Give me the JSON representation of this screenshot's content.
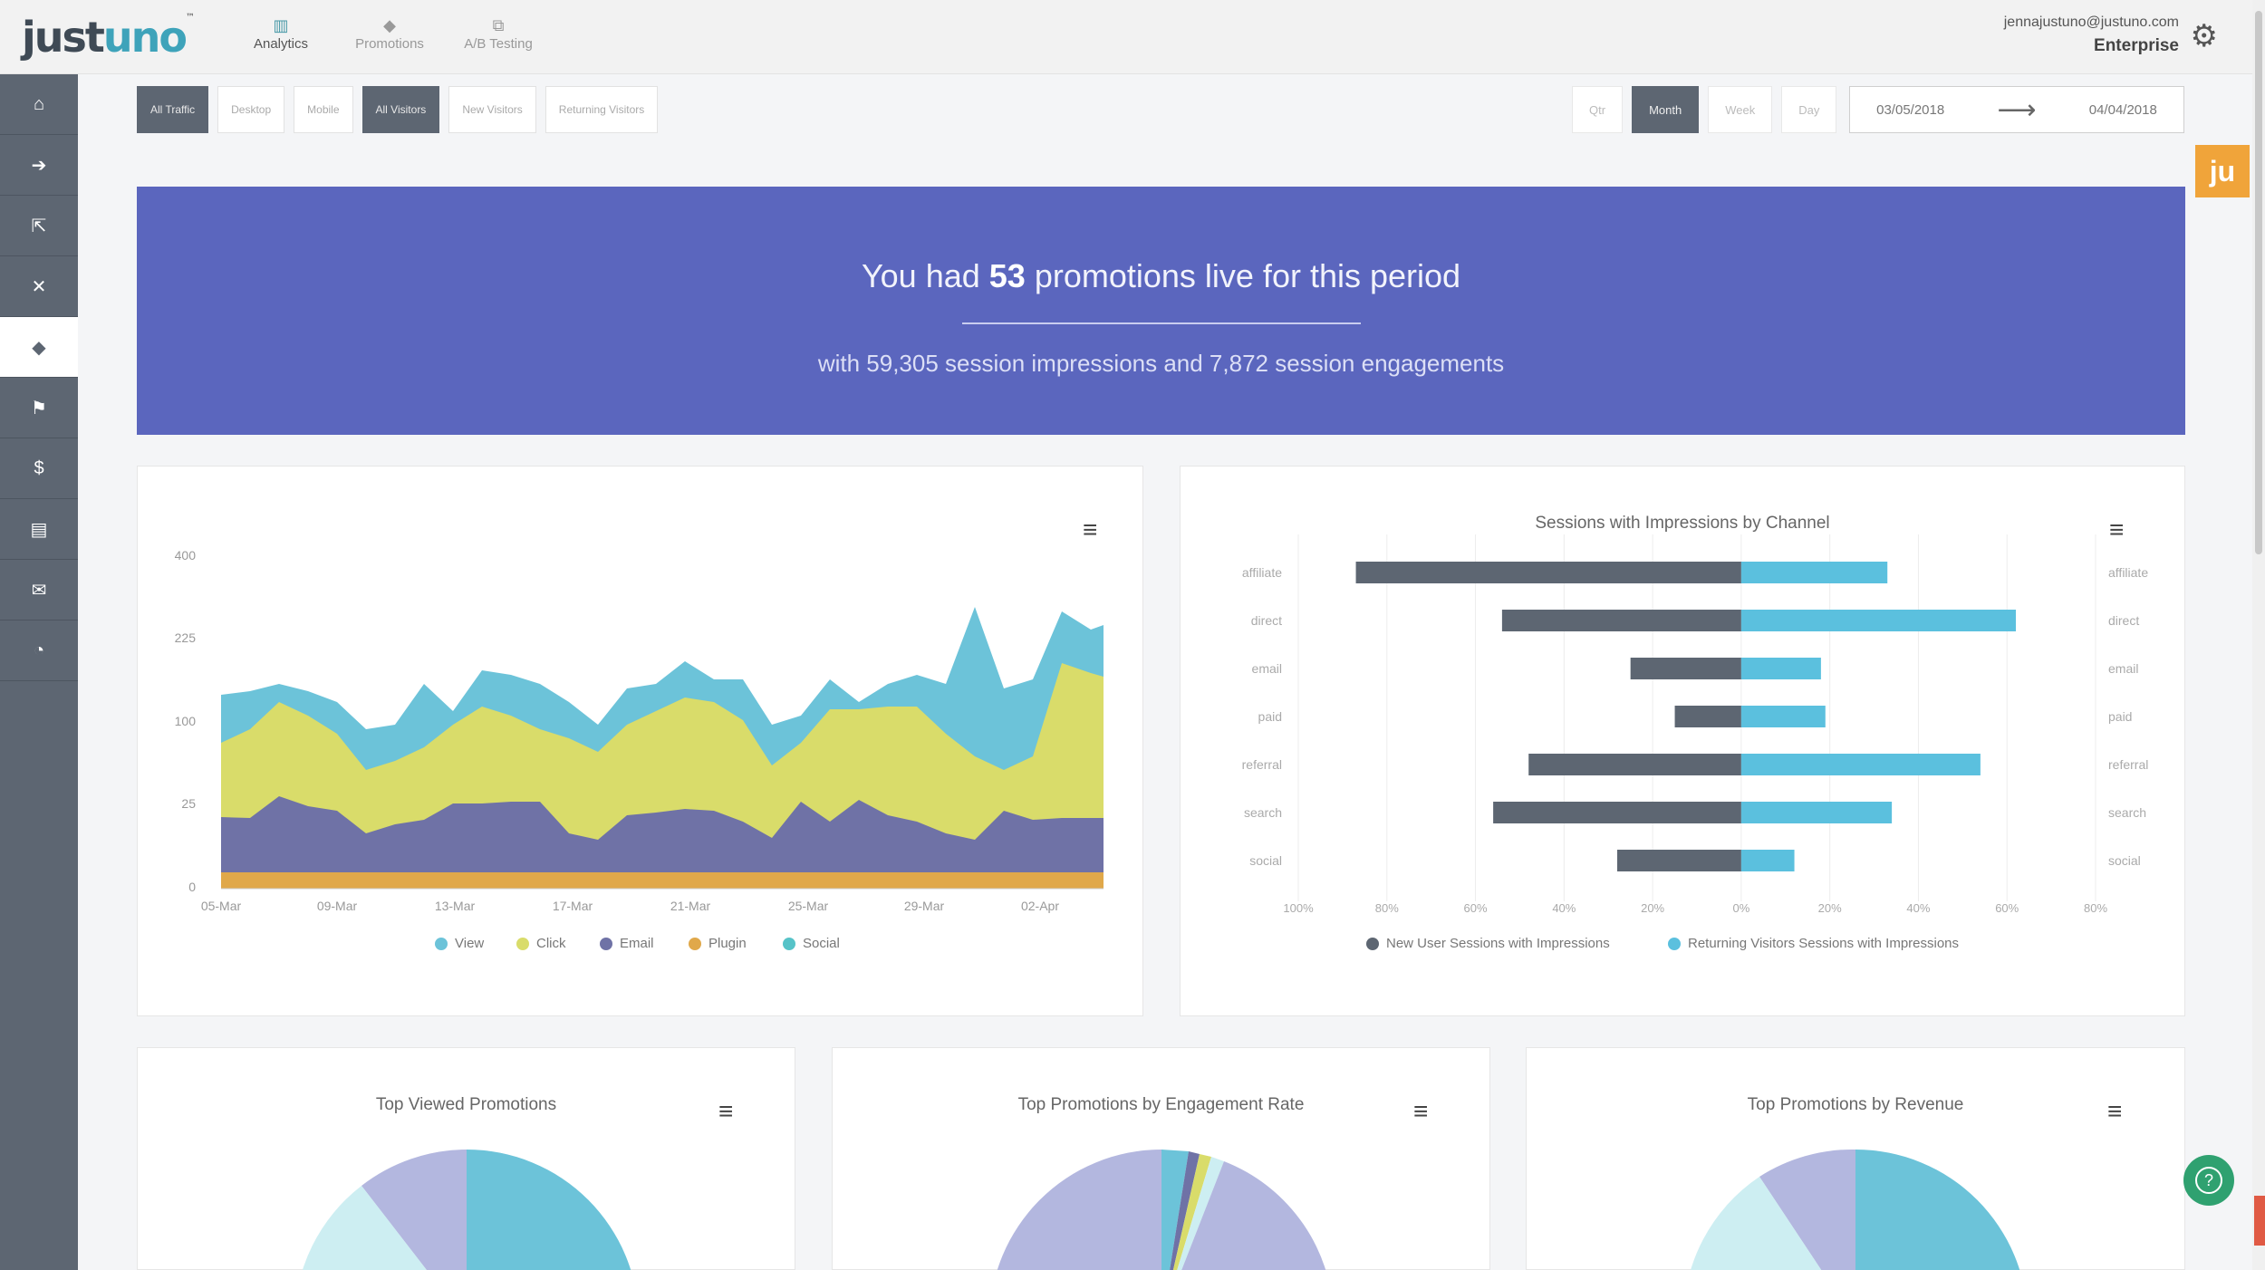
{
  "header": {
    "logo_main": "just",
    "logo_accent": "uno",
    "logo_tm": "™",
    "nav": [
      {
        "label": "Analytics",
        "icon": "bar-chart-icon",
        "active": true
      },
      {
        "label": "Promotions",
        "icon": "tag-icon",
        "active": false
      },
      {
        "label": "A/B Testing",
        "icon": "ab-testing-icon",
        "active": false
      }
    ],
    "user_email": "jennajustuno@justuno.com",
    "plan": "Enterprise"
  },
  "sidebar": {
    "items": [
      {
        "icon": "home-icon",
        "glyph": "⌂"
      },
      {
        "icon": "sign-in-icon",
        "glyph": "➔"
      },
      {
        "icon": "external-link-icon",
        "glyph": "⇱"
      },
      {
        "icon": "crosshair-icon",
        "glyph": "✕"
      },
      {
        "icon": "tag-icon",
        "glyph": "◆",
        "active": true
      },
      {
        "icon": "flag-icon",
        "glyph": "⚑"
      },
      {
        "icon": "dollar-icon",
        "glyph": "$"
      },
      {
        "icon": "cart-icon",
        "glyph": "▤"
      },
      {
        "icon": "envelope-icon",
        "glyph": "✉"
      },
      {
        "icon": "dashboard-icon",
        "glyph": "◔"
      }
    ]
  },
  "filters": {
    "traffic": [
      "All Traffic",
      "Desktop",
      "Mobile"
    ],
    "visitors": [
      "All Visitors",
      "New Visitors",
      "Returning Visitors"
    ],
    "periods": [
      "Qtr",
      "Month",
      "Week",
      "Day"
    ],
    "active_period": "Month",
    "date_from": "03/05/2018",
    "date_to": "04/04/2018"
  },
  "ju_badge": "ju",
  "banner": {
    "prefix": "You had ",
    "count": "53",
    "suffix": " promotions live for this period",
    "sub": "with 59,305 session impressions and 7,872 session engagements"
  },
  "area_chart": {
    "chart_data": {
      "type": "area",
      "stacked": true,
      "y_ticks": [
        "0",
        "25",
        "100",
        "225",
        "400"
      ],
      "x_ticks": [
        "05-Mar",
        "09-Mar",
        "13-Mar",
        "17-Mar",
        "21-Mar",
        "25-Mar",
        "29-Mar",
        "02-Apr"
      ],
      "series": [
        {
          "name": "View",
          "color": "#6cc3d9"
        },
        {
          "name": "Click",
          "color": "#d9dc6a"
        },
        {
          "name": "Email",
          "color": "#6f72a6"
        },
        {
          "name": "Plugin",
          "color": "#e0a84a"
        },
        {
          "name": "Social",
          "color": "#56c3c8"
        }
      ],
      "legend": "bottom"
    },
    "legend": [
      "View",
      "Click",
      "Email",
      "Plugin",
      "Social"
    ]
  },
  "bar_chart": {
    "title": "Sessions with Impressions by Channel",
    "chart_data": {
      "type": "bar",
      "orientation": "horizontal",
      "categories": [
        "affiliate",
        "direct",
        "email",
        "paid",
        "referral",
        "search",
        "social"
      ],
      "series": [
        {
          "name": "New User Sessions with Impressions",
          "color": "#5d6672",
          "values": [
            -87,
            -54,
            -25,
            -15,
            -48,
            -56,
            -28
          ]
        },
        {
          "name": "Returning Visitors Sessions with Impressions",
          "color": "#5bc0de",
          "values": [
            33,
            62,
            18,
            19,
            54,
            34,
            12
          ]
        }
      ],
      "x_ticks": [
        "100%",
        "80%",
        "60%",
        "40%",
        "20%",
        "0%",
        "20%",
        "40%",
        "60%",
        "80%"
      ],
      "xlim": [
        -100,
        80
      ],
      "legend": "bottom"
    },
    "legend": [
      "New User Sessions with Impressions",
      "Returning Visitors Sessions with Impressions"
    ]
  },
  "pies": [
    {
      "title": "Top Viewed Promotions"
    },
    {
      "title": "Top Promotions by Engagement Rate"
    },
    {
      "title": "Top Promotions by Revenue"
    }
  ],
  "help_glyph": "?"
}
